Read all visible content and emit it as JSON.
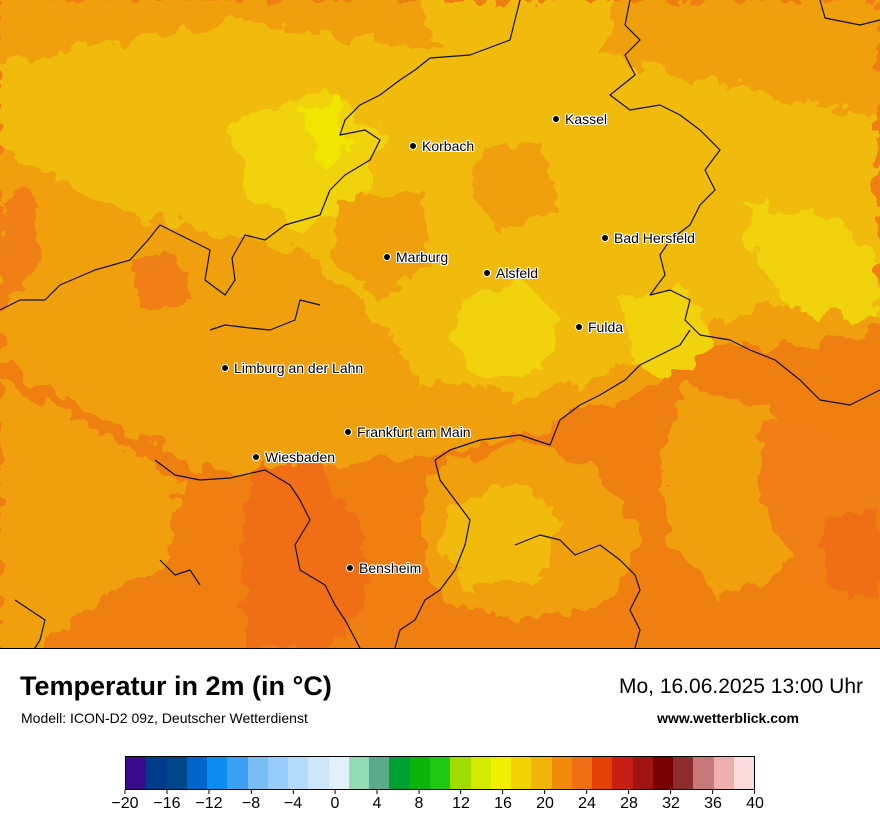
{
  "map": {
    "cities": [
      {
        "name": "Kassel"
      },
      {
        "name": "Korbach"
      },
      {
        "name": "Bad Hersfeld"
      },
      {
        "name": "Marburg"
      },
      {
        "name": "Alsfeld"
      },
      {
        "name": "Fulda"
      },
      {
        "name": "Limburg an der Lahn"
      },
      {
        "name": "Frankfurt am Main"
      },
      {
        "name": "Wiesbaden"
      },
      {
        "name": "Bensheim"
      }
    ]
  },
  "footer": {
    "title": "Temperatur in 2m (in °C)",
    "model": "Modell: ICON-D2 09z, Deutscher Wetterdienst",
    "datetime": "Mo, 16.06.2025 13:00 Uhr",
    "site": "www.wetterblick.com"
  },
  "legend": {
    "colors": [
      "#3a0a8c",
      "#003c8a",
      "#00478a",
      "#0064c8",
      "#0a8cf0",
      "#3ca0f5",
      "#78bef5",
      "#96cdfa",
      "#b4dcfa",
      "#cde6fa",
      "#e1f0fa",
      "#91dcb4",
      "#5aaa8c",
      "#00a032",
      "#0ab40a",
      "#1ec814",
      "#a0dc00",
      "#d2eb00",
      "#f0f000",
      "#f0d205",
      "#f0b40a",
      "#f08c0a",
      "#f06e14",
      "#e6410a",
      "#c81e14",
      "#a01414",
      "#780000",
      "#8c2d2d",
      "#c87878",
      "#f0afaf",
      "#fadcdc"
    ],
    "tick_labels": [
      "−20",
      "−16",
      "−12",
      "−8",
      "−4",
      "0",
      "4",
      "8",
      "12",
      "16",
      "20",
      "24",
      "28",
      "32",
      "36",
      "40"
    ]
  }
}
